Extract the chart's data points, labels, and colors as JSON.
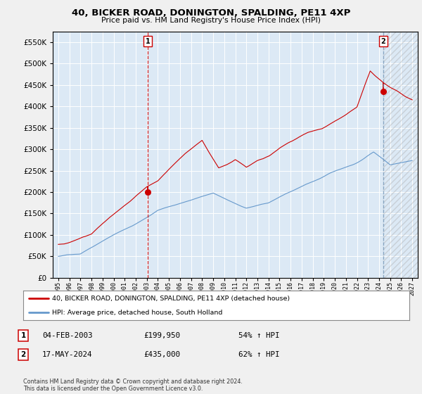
{
  "title": "40, BICKER ROAD, DONINGTON, SPALDING, PE11 4XP",
  "subtitle": "Price paid vs. HM Land Registry's House Price Index (HPI)",
  "legend_line1": "40, BICKER ROAD, DONINGTON, SPALDING, PE11 4XP (detached house)",
  "legend_line2": "HPI: Average price, detached house, South Holland",
  "annotation1_label": "1",
  "annotation1_date": "04-FEB-2003",
  "annotation1_price": "£199,950",
  "annotation1_hpi": "54% ↑ HPI",
  "annotation2_label": "2",
  "annotation2_date": "17-MAY-2024",
  "annotation2_price": "£435,000",
  "annotation2_hpi": "62% ↑ HPI",
  "footer": "Contains HM Land Registry data © Crown copyright and database right 2024.\nThis data is licensed under the Open Government Licence v3.0.",
  "purchase1_x": 2003.09,
  "purchase1_y": 199950,
  "purchase2_x": 2024.38,
  "purchase2_y": 435000,
  "ylim": [
    0,
    575000
  ],
  "xlim": [
    1994.5,
    2027.5
  ],
  "red_color": "#cc0000",
  "blue_color": "#6699cc",
  "background_color": "#f0f0f0",
  "plot_bg_color": "#dce9f5",
  "grid_color": "#ffffff"
}
